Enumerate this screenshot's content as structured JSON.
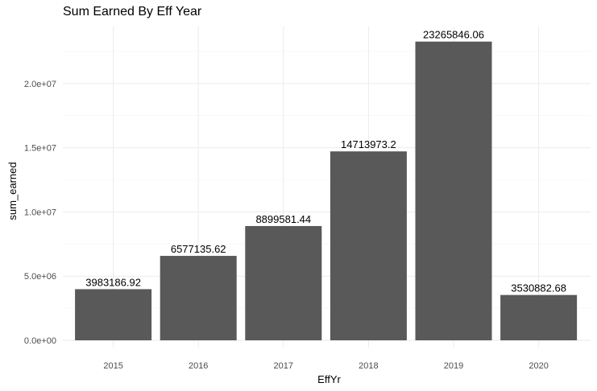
{
  "chart_data": {
    "type": "bar",
    "title": "Sum Earned By Eff Year",
    "xlabel": "EffYr",
    "ylabel": "sum_earned",
    "categories": [
      "2015",
      "2016",
      "2017",
      "2018",
      "2019",
      "2020"
    ],
    "values": [
      3983186.92,
      6577135.62,
      8899581.44,
      14713973.2,
      23265846.06,
      3530882.68
    ],
    "data_labels": [
      "3983186.92",
      "6577135.62",
      "8899581.44",
      "14713973.2",
      "23265846.06",
      "3530882.68"
    ],
    "ylim": [
      0,
      24500000
    ],
    "y_ticks": [
      0,
      5000000,
      10000000,
      15000000,
      20000000
    ],
    "y_tick_labels": [
      "0.0e+00",
      "5.0e+06",
      "1.0e+07",
      "1.5e+07",
      "2.0e+07"
    ],
    "grid": true,
    "bar_color": "#595959",
    "grid_major_color": "#ebebeb",
    "grid_minor_color": "#f5f5f5"
  }
}
